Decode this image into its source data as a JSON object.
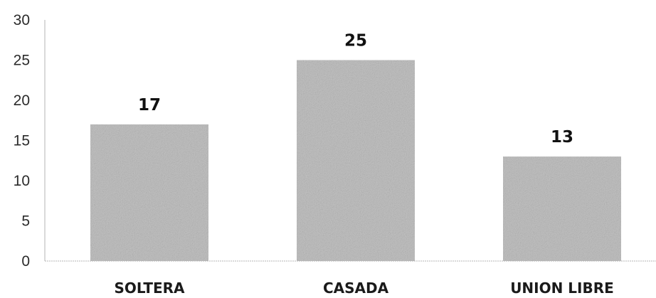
{
  "chart_data": {
    "type": "bar",
    "categories": [
      "SOLTERA",
      "CASADA",
      "UNION LIBRE"
    ],
    "values": [
      17,
      25,
      13
    ],
    "data_labels": [
      "17",
      "25",
      "13"
    ],
    "y_ticks": [
      "0",
      "5",
      "10",
      "15",
      "20",
      "25",
      "30"
    ],
    "ylim": [
      0,
      30
    ],
    "grid": false,
    "legend": "none",
    "bar_color": "#c4c4c4"
  }
}
